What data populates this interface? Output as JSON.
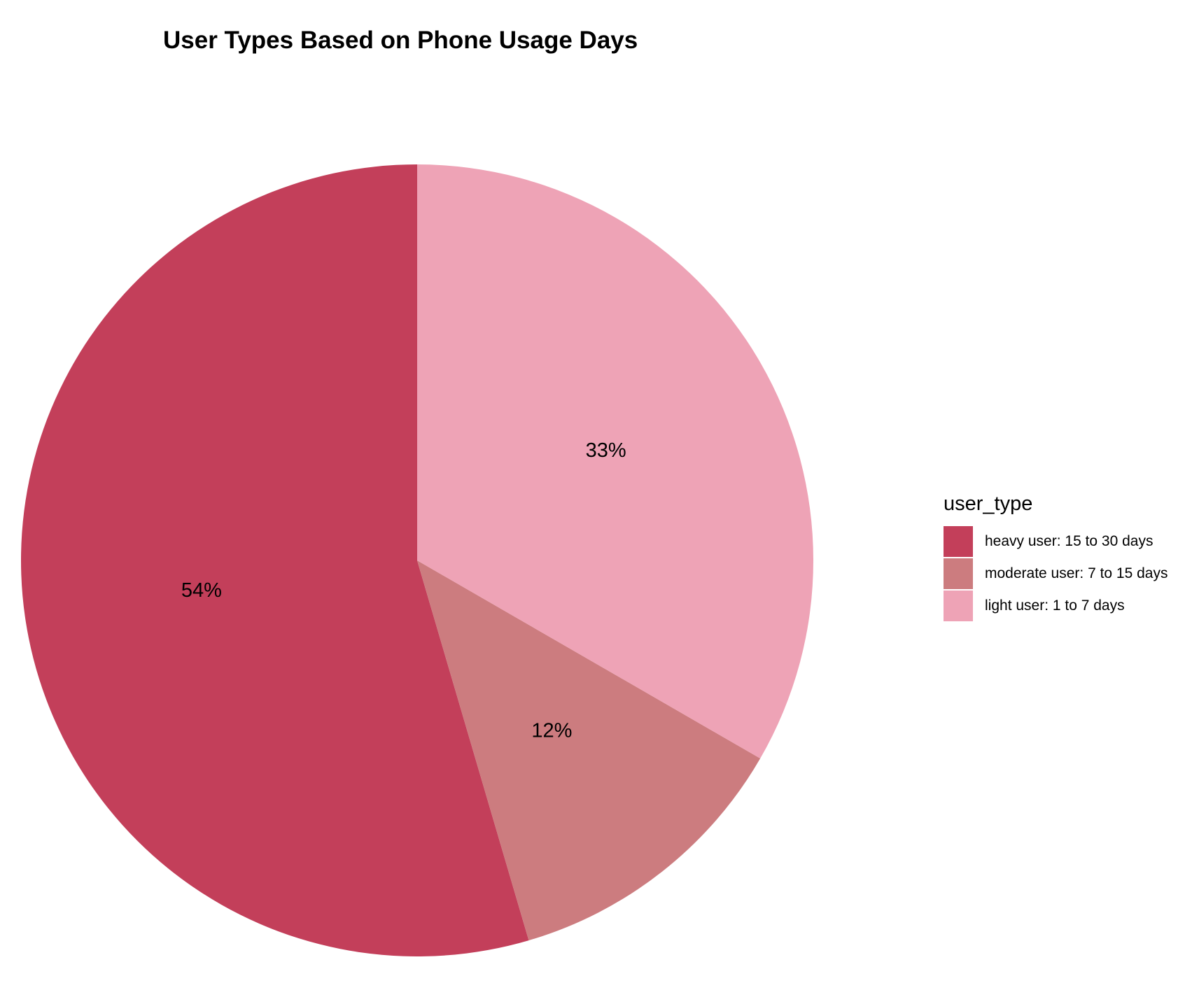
{
  "chart_data": {
    "type": "pie",
    "title": "User Types Based on Phone Usage Days",
    "legend_title": "user_type",
    "legend_position": "right",
    "slices": [
      {
        "name": "heavy user: 15 to 30 days",
        "value": 54,
        "label": "54%",
        "color": "#c33f5a"
      },
      {
        "name": "moderate user: 7 to 15 days",
        "value": 12,
        "label": "12%",
        "color": "#cc7c7f"
      },
      {
        "name": "light user: 1 to 7 days",
        "value": 33,
        "label": "33%",
        "color": "#eea3b6"
      }
    ]
  }
}
